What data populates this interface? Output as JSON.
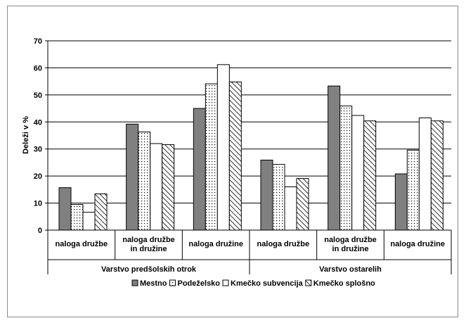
{
  "chart_data": {
    "type": "bar",
    "title": "",
    "ylabel": "Deleži v %",
    "xlabel": "",
    "ylim": [
      0,
      70
    ],
    "yticks": [
      0,
      10,
      20,
      30,
      40,
      50,
      60,
      70
    ],
    "grid": true,
    "legend_position": "bottom",
    "groups": [
      {
        "label": "Varstvo predšolskih otrok",
        "categories": [
          "naloga družbe",
          "naloga družbe in družine",
          "naloga družine"
        ]
      },
      {
        "label": "Varstvo ostarelih",
        "categories": [
          "naloga družbe",
          "naloga družbe in družine",
          "naloga družine"
        ]
      }
    ],
    "categories": [
      [
        "naloga družbe"
      ],
      [
        "naloga družbe",
        "in družine"
      ],
      [
        "naloga družine"
      ],
      [
        "naloga družbe"
      ],
      [
        "naloga družbe",
        "in družine"
      ],
      [
        "naloga družine"
      ]
    ],
    "series": [
      {
        "name": "Mestno",
        "pattern": "solid",
        "color": "#808080",
        "values": [
          15.7,
          39.2,
          45.0,
          25.9,
          53.3,
          20.8
        ]
      },
      {
        "name": "Podeželsko",
        "pattern": "dots",
        "color": "#ffffff",
        "values": [
          9.5,
          36.3,
          54.1,
          24.3,
          45.9,
          29.6
        ]
      },
      {
        "name": "Kmečko subvencija",
        "pattern": "white",
        "color": "#ffffff",
        "values": [
          6.6,
          32.0,
          61.2,
          16.0,
          42.4,
          41.5
        ]
      },
      {
        "name": "Kmečko splošno",
        "pattern": "hatch",
        "color": "#ffffff",
        "values": [
          13.4,
          31.6,
          54.8,
          19.1,
          40.4,
          40.4
        ]
      }
    ]
  }
}
